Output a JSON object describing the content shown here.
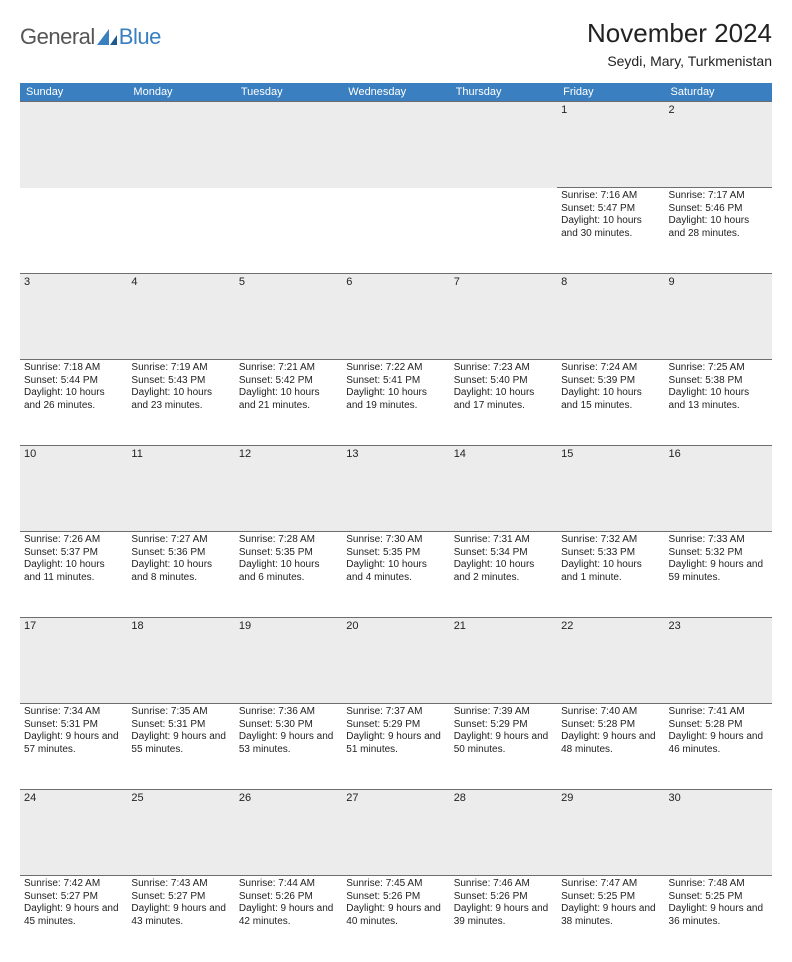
{
  "logo": {
    "general": "General",
    "blue": "Blue"
  },
  "header": {
    "month_title": "November 2024",
    "location": "Seydi, Mary, Turkmenistan"
  },
  "colors": {
    "header_bg": "#3a7fbf",
    "header_text": "#ffffff",
    "daynum_bg": "#ececec",
    "border": "#6e6e6e",
    "text": "#222222",
    "logo_gray": "#555555",
    "logo_blue": "#3a7fbf",
    "page_bg": "#ffffff"
  },
  "weekdays": [
    "Sunday",
    "Monday",
    "Tuesday",
    "Wednesday",
    "Thursday",
    "Friday",
    "Saturday"
  ],
  "weeks": [
    [
      null,
      null,
      null,
      null,
      null,
      {
        "n": "1",
        "sunrise": "7:16 AM",
        "sunset": "5:47 PM",
        "daylight": "10 hours and 30 minutes."
      },
      {
        "n": "2",
        "sunrise": "7:17 AM",
        "sunset": "5:46 PM",
        "daylight": "10 hours and 28 minutes."
      }
    ],
    [
      {
        "n": "3",
        "sunrise": "7:18 AM",
        "sunset": "5:44 PM",
        "daylight": "10 hours and 26 minutes."
      },
      {
        "n": "4",
        "sunrise": "7:19 AM",
        "sunset": "5:43 PM",
        "daylight": "10 hours and 23 minutes."
      },
      {
        "n": "5",
        "sunrise": "7:21 AM",
        "sunset": "5:42 PM",
        "daylight": "10 hours and 21 minutes."
      },
      {
        "n": "6",
        "sunrise": "7:22 AM",
        "sunset": "5:41 PM",
        "daylight": "10 hours and 19 minutes."
      },
      {
        "n": "7",
        "sunrise": "7:23 AM",
        "sunset": "5:40 PM",
        "daylight": "10 hours and 17 minutes."
      },
      {
        "n": "8",
        "sunrise": "7:24 AM",
        "sunset": "5:39 PM",
        "daylight": "10 hours and 15 minutes."
      },
      {
        "n": "9",
        "sunrise": "7:25 AM",
        "sunset": "5:38 PM",
        "daylight": "10 hours and 13 minutes."
      }
    ],
    [
      {
        "n": "10",
        "sunrise": "7:26 AM",
        "sunset": "5:37 PM",
        "daylight": "10 hours and 11 minutes."
      },
      {
        "n": "11",
        "sunrise": "7:27 AM",
        "sunset": "5:36 PM",
        "daylight": "10 hours and 8 minutes."
      },
      {
        "n": "12",
        "sunrise": "7:28 AM",
        "sunset": "5:35 PM",
        "daylight": "10 hours and 6 minutes."
      },
      {
        "n": "13",
        "sunrise": "7:30 AM",
        "sunset": "5:35 PM",
        "daylight": "10 hours and 4 minutes."
      },
      {
        "n": "14",
        "sunrise": "7:31 AM",
        "sunset": "5:34 PM",
        "daylight": "10 hours and 2 minutes."
      },
      {
        "n": "15",
        "sunrise": "7:32 AM",
        "sunset": "5:33 PM",
        "daylight": "10 hours and 1 minute."
      },
      {
        "n": "16",
        "sunrise": "7:33 AM",
        "sunset": "5:32 PM",
        "daylight": "9 hours and 59 minutes."
      }
    ],
    [
      {
        "n": "17",
        "sunrise": "7:34 AM",
        "sunset": "5:31 PM",
        "daylight": "9 hours and 57 minutes."
      },
      {
        "n": "18",
        "sunrise": "7:35 AM",
        "sunset": "5:31 PM",
        "daylight": "9 hours and 55 minutes."
      },
      {
        "n": "19",
        "sunrise": "7:36 AM",
        "sunset": "5:30 PM",
        "daylight": "9 hours and 53 minutes."
      },
      {
        "n": "20",
        "sunrise": "7:37 AM",
        "sunset": "5:29 PM",
        "daylight": "9 hours and 51 minutes."
      },
      {
        "n": "21",
        "sunrise": "7:39 AM",
        "sunset": "5:29 PM",
        "daylight": "9 hours and 50 minutes."
      },
      {
        "n": "22",
        "sunrise": "7:40 AM",
        "sunset": "5:28 PM",
        "daylight": "9 hours and 48 minutes."
      },
      {
        "n": "23",
        "sunrise": "7:41 AM",
        "sunset": "5:28 PM",
        "daylight": "9 hours and 46 minutes."
      }
    ],
    [
      {
        "n": "24",
        "sunrise": "7:42 AM",
        "sunset": "5:27 PM",
        "daylight": "9 hours and 45 minutes."
      },
      {
        "n": "25",
        "sunrise": "7:43 AM",
        "sunset": "5:27 PM",
        "daylight": "9 hours and 43 minutes."
      },
      {
        "n": "26",
        "sunrise": "7:44 AM",
        "sunset": "5:26 PM",
        "daylight": "9 hours and 42 minutes."
      },
      {
        "n": "27",
        "sunrise": "7:45 AM",
        "sunset": "5:26 PM",
        "daylight": "9 hours and 40 minutes."
      },
      {
        "n": "28",
        "sunrise": "7:46 AM",
        "sunset": "5:26 PM",
        "daylight": "9 hours and 39 minutes."
      },
      {
        "n": "29",
        "sunrise": "7:47 AM",
        "sunset": "5:25 PM",
        "daylight": "9 hours and 38 minutes."
      },
      {
        "n": "30",
        "sunrise": "7:48 AM",
        "sunset": "5:25 PM",
        "daylight": "9 hours and 36 minutes."
      }
    ]
  ],
  "labels": {
    "sunrise": "Sunrise: ",
    "sunset": "Sunset: ",
    "daylight": "Daylight: "
  }
}
